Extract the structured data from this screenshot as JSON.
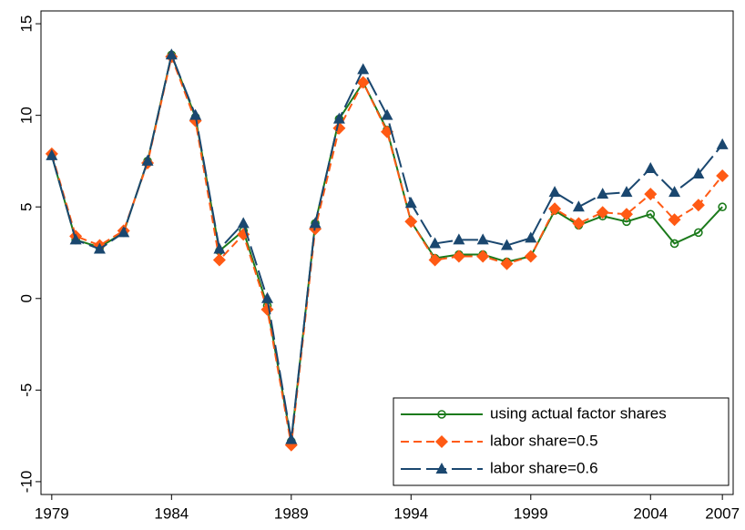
{
  "chart_data": {
    "type": "line",
    "x": [
      1979,
      1980,
      1981,
      1982,
      1983,
      1984,
      1985,
      1986,
      1987,
      1988,
      1989,
      1990,
      1991,
      1992,
      1993,
      1994,
      1995,
      1996,
      1997,
      1998,
      1999,
      2000,
      2001,
      2002,
      2003,
      2004,
      2005,
      2006,
      2007
    ],
    "series": [
      {
        "name": "using actual factor shares",
        "color": "#1b7a1b",
        "marker": "circle",
        "dash": "solid",
        "values": [
          7.8,
          3.2,
          2.8,
          3.6,
          7.5,
          13.3,
          9.9,
          2.6,
          3.7,
          -0.4,
          -7.8,
          4.1,
          9.8,
          11.8,
          9.2,
          4.2,
          2.2,
          2.4,
          2.4,
          2.0,
          2.3,
          4.8,
          4.0,
          4.5,
          4.2,
          4.6,
          3.0,
          3.6,
          5.0
        ]
      },
      {
        "name": "labor share=0.5",
        "color": "#ff5a14",
        "marker": "diamond",
        "dash": "short",
        "values": [
          7.9,
          3.4,
          2.9,
          3.7,
          7.4,
          13.2,
          9.7,
          2.1,
          3.5,
          -0.6,
          -8.0,
          3.8,
          9.3,
          11.8,
          9.1,
          4.2,
          2.1,
          2.3,
          2.3,
          1.9,
          2.3,
          4.9,
          4.1,
          4.7,
          4.6,
          5.7,
          4.3,
          5.1,
          6.7
        ]
      },
      {
        "name": "labor share=0.6",
        "color": "#1a476f",
        "marker": "triangle",
        "dash": "long",
        "values": [
          7.8,
          3.2,
          2.7,
          3.6,
          7.5,
          13.3,
          10.0,
          2.7,
          4.1,
          0.0,
          -7.7,
          4.1,
          9.8,
          12.5,
          10.0,
          5.2,
          3.0,
          3.2,
          3.2,
          2.9,
          3.3,
          5.8,
          5.0,
          5.7,
          5.8,
          7.1,
          5.8,
          6.8,
          8.4
        ]
      }
    ],
    "xlim": [
      1978.55,
      2007.45
    ],
    "xticks": [
      1979,
      1984,
      1989,
      1994,
      1999,
      2004,
      2007
    ],
    "ylim": [
      -10.7,
      15.7
    ],
    "yticks": [
      -10,
      -5,
      0,
      5,
      10,
      15
    ],
    "grid": false,
    "legend": "lower right"
  }
}
